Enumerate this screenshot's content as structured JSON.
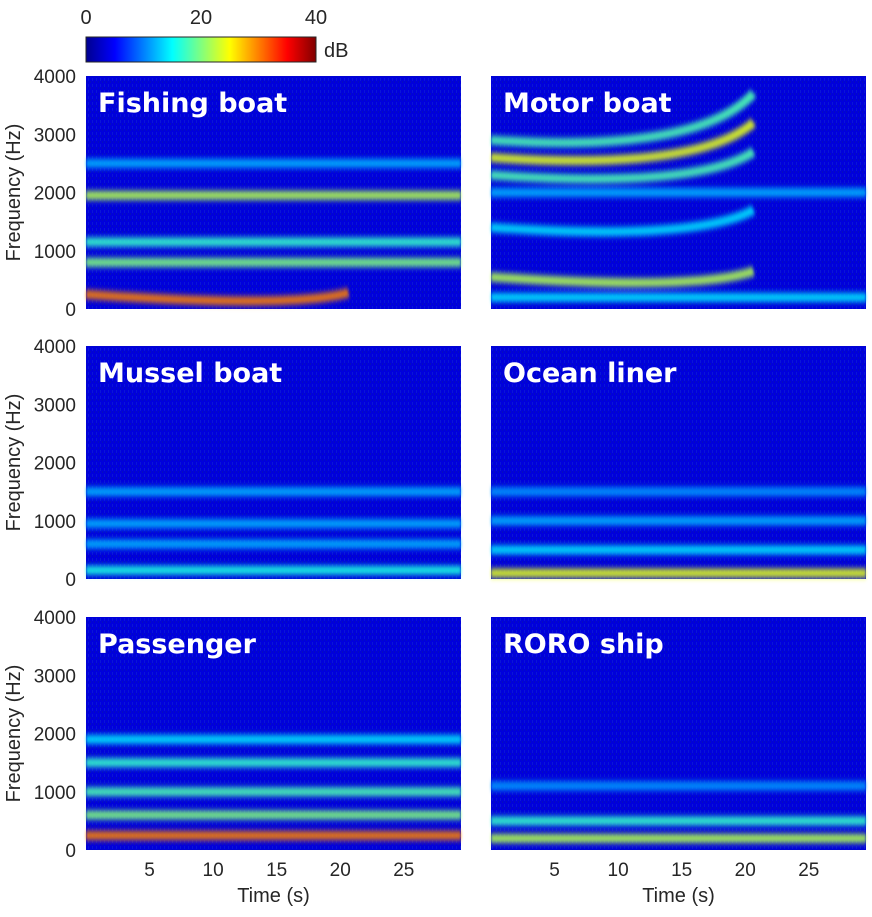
{
  "chart_data": {
    "type": "heatmap",
    "colormap": "jet",
    "colorbar": {
      "ticks": [
        "0",
        "20",
        "40"
      ],
      "range": [
        0,
        40
      ],
      "unit_label": "dB"
    },
    "xlabel": "Time (s)",
    "ylabel": "Frequency (Hz)",
    "xlim": [
      0,
      29.5
    ],
    "ylim": [
      0,
      4000
    ],
    "xticks": [
      5,
      10,
      15,
      20,
      25
    ],
    "xtick_labels": [
      "5",
      "10",
      "15",
      "20",
      "25"
    ],
    "yticks": [
      0,
      1000,
      2000,
      3000,
      4000
    ],
    "ytick_labels": [
      "0",
      "1000",
      "2000",
      "3000",
      "4000"
    ],
    "panels": [
      {
        "title": "Fishing boat",
        "bands": [
          {
            "start_hz": 250,
            "end_hz": 280,
            "db": 30
          },
          {
            "start_hz": 800,
            "end_hz": 800,
            "db": 20
          },
          {
            "start_hz": 1150,
            "end_hz": 1150,
            "db": 17
          },
          {
            "start_hz": 1950,
            "end_hz": 1950,
            "db": 22
          },
          {
            "start_hz": 2500,
            "end_hz": 2500,
            "db": 12
          }
        ]
      },
      {
        "title": "Motor boat",
        "bands": [
          {
            "start_hz": 2900,
            "end_hz": 3700,
            "db": 18
          },
          {
            "start_hz": 2600,
            "end_hz": 3200,
            "db": 24
          },
          {
            "start_hz": 2300,
            "end_hz": 2700,
            "db": 18
          },
          {
            "start_hz": 2000,
            "end_hz": 2000,
            "db": 12
          },
          {
            "start_hz": 1400,
            "end_hz": 1700,
            "db": 14
          },
          {
            "start_hz": 550,
            "end_hz": 650,
            "db": 22
          },
          {
            "start_hz": 200,
            "end_hz": 200,
            "db": 14
          }
        ]
      },
      {
        "title": "Mussel boat",
        "bands": [
          {
            "start_hz": 1500,
            "end_hz": 1500,
            "db": 12
          },
          {
            "start_hz": 950,
            "end_hz": 950,
            "db": 12
          },
          {
            "start_hz": 600,
            "end_hz": 600,
            "db": 12
          },
          {
            "start_hz": 150,
            "end_hz": 150,
            "db": 16
          }
        ]
      },
      {
        "title": "Ocean liner",
        "bands": [
          {
            "start_hz": 1500,
            "end_hz": 1500,
            "db": 11
          },
          {
            "start_hz": 1000,
            "end_hz": 1000,
            "db": 12
          },
          {
            "start_hz": 500,
            "end_hz": 500,
            "db": 14
          },
          {
            "start_hz": 100,
            "end_hz": 100,
            "db": 24
          }
        ]
      },
      {
        "title": "Passenger",
        "bands": [
          {
            "start_hz": 1900,
            "end_hz": 1900,
            "db": 14
          },
          {
            "start_hz": 1500,
            "end_hz": 1500,
            "db": 17
          },
          {
            "start_hz": 1000,
            "end_hz": 1000,
            "db": 18
          },
          {
            "start_hz": 600,
            "end_hz": 600,
            "db": 20
          },
          {
            "start_hz": 250,
            "end_hz": 250,
            "db": 30
          }
        ]
      },
      {
        "title": "RORO ship",
        "bands": [
          {
            "start_hz": 1100,
            "end_hz": 1100,
            "db": 11
          },
          {
            "start_hz": 500,
            "end_hz": 500,
            "db": 17
          },
          {
            "start_hz": 200,
            "end_hz": 200,
            "db": 22
          }
        ]
      }
    ]
  }
}
